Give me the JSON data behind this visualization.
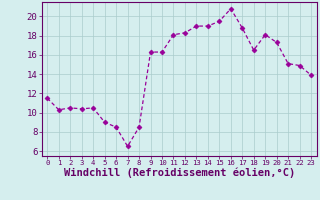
{
  "x": [
    0,
    1,
    2,
    3,
    4,
    5,
    6,
    7,
    8,
    9,
    10,
    11,
    12,
    13,
    14,
    15,
    16,
    17,
    18,
    19,
    20,
    21,
    22,
    23
  ],
  "y": [
    11.5,
    10.3,
    10.5,
    10.4,
    10.5,
    9.0,
    8.5,
    6.5,
    8.5,
    16.3,
    16.3,
    18.1,
    18.3,
    19.0,
    19.0,
    19.5,
    20.8,
    18.8,
    16.5,
    18.1,
    17.3,
    15.1,
    14.9,
    13.9
  ],
  "xlabel": "Windchill (Refroidissement éolien,°C)",
  "xlim": [
    -0.5,
    23.5
  ],
  "ylim": [
    5.5,
    21.5
  ],
  "yticks": [
    6,
    8,
    10,
    12,
    14,
    16,
    18,
    20
  ],
  "xticks": [
    0,
    1,
    2,
    3,
    4,
    5,
    6,
    7,
    8,
    9,
    10,
    11,
    12,
    13,
    14,
    15,
    16,
    17,
    18,
    19,
    20,
    21,
    22,
    23
  ],
  "line_color": "#990099",
  "marker": "D",
  "marker_size": 2.5,
  "bg_color": "#d5eeee",
  "grid_color": "#aacccc",
  "axis_color": "#660066",
  "tick_label_color": "#660066",
  "xlabel_color": "#660066",
  "xlabel_fontsize": 7.5,
  "tick_fontsize": 6.5,
  "xtick_fontsize": 5.2
}
